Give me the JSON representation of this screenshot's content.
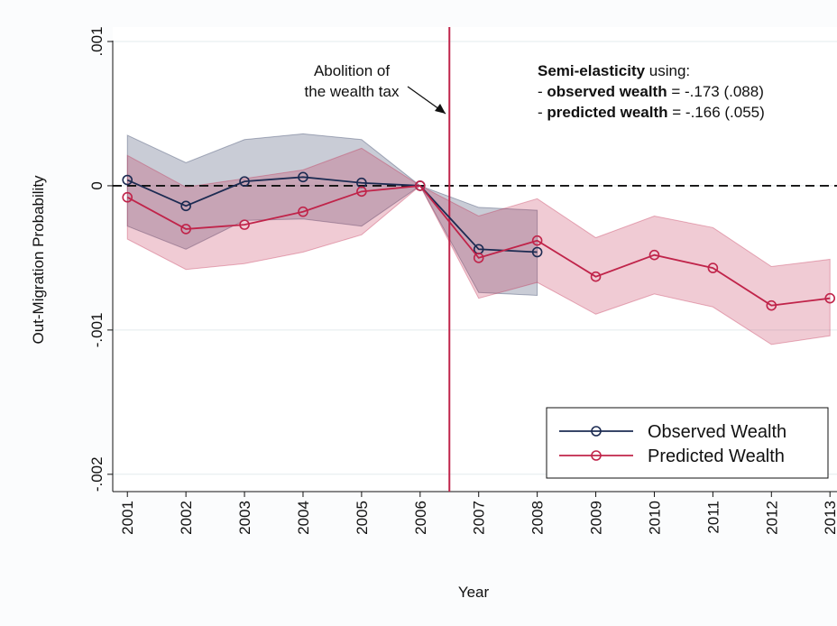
{
  "chart_data": {
    "type": "line",
    "x": [
      2001,
      2002,
      2003,
      2004,
      2005,
      2006,
      2007,
      2008,
      2009,
      2010,
      2011,
      2012,
      2013
    ],
    "xlim": [
      2000.75,
      2013.12
    ],
    "xticks": [
      2001,
      2002,
      2003,
      2004,
      2005,
      2006,
      2007,
      2008,
      2009,
      2010,
      2011,
      2012,
      2013
    ],
    "ylim": [
      -0.00212,
      0.0011
    ],
    "yticks": [
      {
        "value": 0.001,
        "label": ".001"
      },
      0,
      {
        "value": -0.001,
        "label": "-.001"
      },
      {
        "value": -0.002,
        "label": "-.002"
      }
    ],
    "xlabel": "Year",
    "ylabel": "Out-Migration Probability",
    "grid": true,
    "hline": 0,
    "vline": 2006.5,
    "vline_color": "#c0244a",
    "legend": "lower right",
    "series": [
      {
        "name": "Observed Wealth",
        "color": "#1c2b52",
        "values": [
          4e-05,
          -0.00014,
          3e-05,
          6e-05,
          2e-05,
          0,
          -0.00044,
          -0.00046,
          null,
          null,
          null,
          null,
          null
        ],
        "upper": [
          0.00035,
          0.00016,
          0.00032,
          0.00036,
          0.00032,
          0,
          -0.00015,
          -0.00017,
          null,
          null,
          null,
          null,
          null
        ],
        "lower": [
          -0.00028,
          -0.00044,
          -0.00024,
          -0.00023,
          -0.00028,
          0,
          -0.00074,
          -0.00076,
          null,
          null,
          null,
          null,
          null
        ]
      },
      {
        "name": "Predicted Wealth",
        "color": "#c0244a",
        "values": [
          -8e-05,
          -0.0003,
          -0.00027,
          -0.00018,
          -4e-05,
          0,
          -0.0005,
          -0.00038,
          -0.00063,
          -0.00048,
          -0.00057,
          -0.00083,
          -0.00078
        ],
        "upper": [
          0.00021,
          -1e-05,
          5e-05,
          0.00011,
          0.00026,
          0,
          -0.00021,
          -9e-05,
          -0.00036,
          -0.00021,
          -0.00029,
          -0.00056,
          -0.00051
        ],
        "lower": [
          -0.00037,
          -0.00058,
          -0.00054,
          -0.00046,
          -0.00034,
          0,
          -0.00078,
          -0.00067,
          -0.00089,
          -0.00075,
          -0.00084,
          -0.0011,
          -0.00104
        ]
      }
    ],
    "annotation": [
      "Abolition of",
      "the wealth tax"
    ],
    "note": [
      [
        {
          "text": "Semi-elasticity",
          "bold": true
        },
        {
          "text": " using:"
        }
      ],
      [
        {
          "text": "- "
        },
        {
          "text": "observed wealth",
          "bold": true
        },
        {
          "text": " = -.173 (.088)"
        }
      ],
      [
        {
          "text": "- "
        },
        {
          "text": "predicted wealth",
          "bold": true
        },
        {
          "text": " = -.166 (.055)"
        }
      ]
    ]
  }
}
